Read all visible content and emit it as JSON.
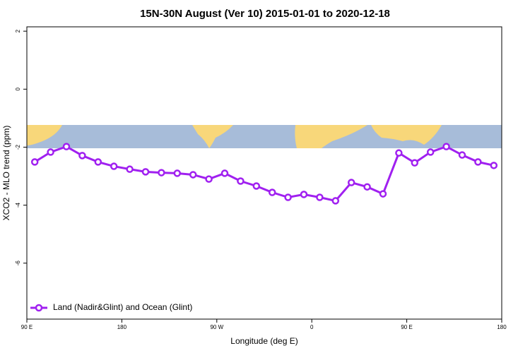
{
  "chart_data": {
    "type": "line",
    "title": "15N-30N August (Ver 10)   2015-01-01 to 2020-12-18",
    "x_label": "Longitude (deg E)",
    "y_label": "XCO2 - MLO trend (ppm)",
    "x": [
      97.5,
      112.5,
      127.5,
      142.5,
      157.5,
      172.5,
      187.5,
      202.5,
      217.5,
      232.5,
      247.5,
      262.5,
      277.5,
      292.5,
      307.5,
      322.5,
      337.5,
      352.5,
      367.5,
      382.5,
      397.5,
      412.5,
      427.5,
      442.5,
      457.5,
      472.5,
      487.5,
      502.5,
      517.5,
      532.5
    ],
    "series": [
      {
        "name": "Land (Nadir&Glint) and Ocean (Glint)",
        "color": "#a020f0",
        "values": [
          -2.51,
          -2.17,
          -1.98,
          -2.29,
          -2.51,
          -2.66,
          -2.76,
          -2.85,
          -2.88,
          -2.9,
          -2.95,
          -3.1,
          -2.9,
          -3.17,
          -3.34,
          -3.56,
          -3.73,
          -3.63,
          -3.73,
          -3.85,
          -3.22,
          -3.37,
          -3.61,
          -2.2,
          -2.54,
          -2.17,
          -1.98,
          -2.27,
          -2.51,
          -2.63
        ]
      }
    ],
    "xlim": [
      90,
      540
    ],
    "xticks": [
      {
        "value": 90,
        "label": "90 E"
      },
      {
        "value": 180,
        "label": "180"
      },
      {
        "value": 270,
        "label": "90 W"
      },
      {
        "value": 360,
        "label": "0"
      },
      {
        "value": 450,
        "label": "90 E"
      },
      {
        "value": 540,
        "label": "180"
      }
    ],
    "ylim": [
      -7.93,
      2.15
    ],
    "yticks": [
      2,
      0,
      -2,
      -4,
      -6
    ],
    "legend_position": "lower left",
    "grid": false
  }
}
